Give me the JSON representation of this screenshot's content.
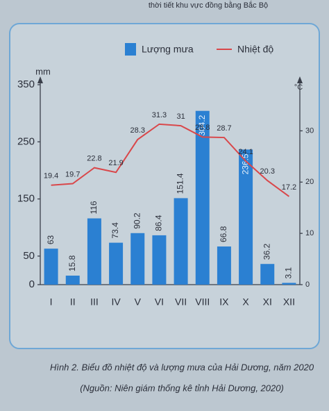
{
  "header": "thời tiết khu vực đồng bằng Bắc Bộ",
  "chart_data": {
    "type": "bar_line",
    "y_label": "mm",
    "y2_label": "°C",
    "categories": [
      "I",
      "II",
      "III",
      "IV",
      "V",
      "VI",
      "VII",
      "VIII",
      "IX",
      "X",
      "XI",
      "XII"
    ],
    "series": [
      {
        "name": "Lượng mưa",
        "color": "#2b80d2",
        "type": "bar",
        "values": [
          63,
          15.8,
          116,
          73.4,
          90.2,
          86.4,
          151.4,
          304.2,
          66.8,
          236.5,
          36.2,
          3.1
        ]
      },
      {
        "name": "Nhiệt độ",
        "color": "#d9474a",
        "type": "line",
        "axis": "y2",
        "values": [
          19.4,
          19.7,
          22.8,
          21.9,
          28.3,
          31.3,
          31,
          28.8,
          28.7,
          24.1,
          20.3,
          17.2
        ]
      }
    ],
    "ylim": [
      0,
      350
    ],
    "yticks": [
      0,
      50,
      150,
      250,
      350
    ],
    "y2lim": [
      0,
      39
    ],
    "y2ticks": [
      0,
      10,
      20,
      30
    ],
    "grid": false,
    "legend": "top",
    "caption": "Hình 2. Biểu đồ nhiệt độ và lượng mưa của Hải Dương, năm 2020",
    "source": "(Nguồn: Niên giám thống kê tỉnh Hải Dương, 2020)"
  }
}
